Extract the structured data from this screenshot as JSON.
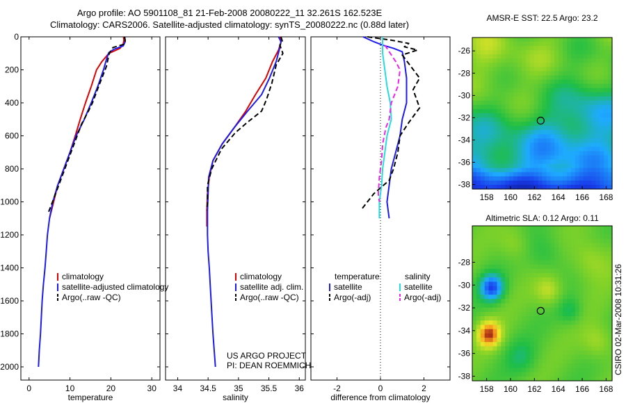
{
  "header": {
    "title_line1": "Argo profile: AO 5901108_81 21-Feb-2008 20080222_11 32.261S 162.523E",
    "title_line2": "Climatology: CARS2006. Satellite-adjusted climatology: synTS_20080222.nc (0.88d later)"
  },
  "stamp": "CSIRO 02-Mar-2008 10:31:26",
  "project_credit": {
    "line1": "US ARGO PROJECT",
    "line2": "PI: DEAN ROEMMICH"
  },
  "colors": {
    "red": "#dd0000",
    "blue": "#1a1aee",
    "black": "#000000",
    "cyan": "#22dddd",
    "magenta": "#ee22ee"
  },
  "chart_data": [
    {
      "id": "temperature",
      "type": "line",
      "xlabel": "temperature",
      "xlim": [
        -2,
        32
      ],
      "ylim": [
        2080,
        0
      ],
      "xticks": [
        0,
        10,
        20,
        30
      ],
      "yticks": [
        0,
        200,
        400,
        600,
        800,
        1000,
        1200,
        1400,
        1600,
        1800,
        2000
      ],
      "legend": [
        "climatology",
        "satellite-adjusted climatology",
        "Argo(..raw -QC)"
      ],
      "series": [
        {
          "name": "climatology",
          "color": "red",
          "style": "solid",
          "points": [
            [
              23.1,
              0
            ],
            [
              23.2,
              20
            ],
            [
              23.0,
              45
            ],
            [
              22.2,
              70
            ],
            [
              19.5,
              100
            ],
            [
              17.8,
              150
            ],
            [
              16.5,
              200
            ],
            [
              15.2,
              300
            ],
            [
              13.8,
              400
            ],
            [
              12.5,
              500
            ],
            [
              11.3,
              600
            ],
            [
              10.0,
              700
            ],
            [
              8.5,
              800
            ],
            [
              7.0,
              900
            ],
            [
              6.0,
              1000
            ],
            [
              5.0,
              1100
            ]
          ]
        },
        {
          "name": "satellite-adjusted climatology",
          "color": "blue",
          "style": "solid",
          "points": [
            [
              23.4,
              0
            ],
            [
              23.5,
              30
            ],
            [
              23.0,
              55
            ],
            [
              20.8,
              75
            ],
            [
              19.5,
              95
            ],
            [
              19.0,
              130
            ],
            [
              18.2,
              200
            ],
            [
              16.8,
              300
            ],
            [
              15.2,
              400
            ],
            [
              13.5,
              500
            ],
            [
              11.5,
              600
            ],
            [
              10.0,
              700
            ],
            [
              8.5,
              800
            ],
            [
              7.0,
              900
            ],
            [
              5.8,
              1000
            ],
            [
              5.0,
              1100
            ],
            [
              4.5,
              1200
            ],
            [
              4.2,
              1300
            ],
            [
              3.9,
              1400
            ],
            [
              3.5,
              1500
            ],
            [
              3.2,
              1600
            ],
            [
              3.0,
              1700
            ],
            [
              2.8,
              1800
            ],
            [
              2.5,
              1900
            ],
            [
              2.3,
              2000
            ]
          ]
        },
        {
          "name": "Argo(..raw -QC)",
          "color": "black",
          "style": "dashed",
          "points": [
            [
              23.3,
              0
            ],
            [
              23.5,
              20
            ],
            [
              23.2,
              45
            ],
            [
              20.5,
              65
            ],
            [
              19.6,
              100
            ],
            [
              18.9,
              180
            ],
            [
              17.0,
              300
            ],
            [
              15.5,
              400
            ],
            [
              14.5,
              450
            ],
            [
              12.8,
              530
            ],
            [
              11.0,
              650
            ],
            [
              9.5,
              750
            ],
            [
              8.0,
              850
            ],
            [
              6.5,
              950
            ],
            [
              4.8,
              1060
            ]
          ]
        }
      ]
    },
    {
      "id": "salinity",
      "type": "line",
      "xlabel": "salinity",
      "xlim": [
        33.8,
        36.1
      ],
      "ylim": [
        2080,
        0
      ],
      "xticks": [
        34,
        34.5,
        35,
        35.5,
        36
      ],
      "legend": [
        "climatology",
        "satellite adj. clim.",
        "Argo(..raw -QC)"
      ],
      "series": [
        {
          "name": "climatology",
          "color": "red",
          "style": "solid",
          "points": [
            [
              35.68,
              0
            ],
            [
              35.7,
              30
            ],
            [
              35.66,
              80
            ],
            [
              35.56,
              150
            ],
            [
              35.45,
              250
            ],
            [
              35.28,
              350
            ],
            [
              35.12,
              450
            ],
            [
              34.93,
              550
            ],
            [
              34.73,
              650
            ],
            [
              34.58,
              750
            ],
            [
              34.52,
              850
            ],
            [
              34.49,
              950
            ],
            [
              34.48,
              1050
            ],
            [
              34.48,
              1150
            ]
          ]
        },
        {
          "name": "satellite adj. clim.",
          "color": "blue",
          "style": "solid",
          "points": [
            [
              35.66,
              0
            ],
            [
              35.7,
              30
            ],
            [
              35.67,
              80
            ],
            [
              35.62,
              150
            ],
            [
              35.51,
              250
            ],
            [
              35.38,
              350
            ],
            [
              35.15,
              450
            ],
            [
              34.93,
              550
            ],
            [
              34.73,
              650
            ],
            [
              34.58,
              750
            ],
            [
              34.51,
              850
            ],
            [
              34.5,
              950
            ],
            [
              34.49,
              1050
            ],
            [
              34.49,
              1200
            ],
            [
              34.5,
              1300
            ],
            [
              34.52,
              1400
            ],
            [
              34.55,
              1600
            ],
            [
              34.58,
              1800
            ],
            [
              34.62,
              2000
            ]
          ]
        },
        {
          "name": "Argo(..raw -QC)",
          "color": "black",
          "style": "dashed",
          "points": [
            [
              35.7,
              0
            ],
            [
              35.72,
              25
            ],
            [
              35.68,
              50
            ],
            [
              35.73,
              100
            ],
            [
              35.62,
              170
            ],
            [
              35.55,
              280
            ],
            [
              35.46,
              380
            ],
            [
              35.38,
              450
            ],
            [
              35.14,
              520
            ],
            [
              34.95,
              580
            ],
            [
              34.72,
              680
            ],
            [
              34.56,
              800
            ],
            [
              34.49,
              900
            ],
            [
              34.49,
              1000
            ],
            [
              34.48,
              1050
            ]
          ]
        }
      ]
    },
    {
      "id": "difference",
      "type": "line",
      "xlabel": "difference from climatology",
      "xlim": [
        -3.2,
        3.2
      ],
      "ylim": [
        2080,
        0
      ],
      "xticks": [
        -2,
        0,
        2
      ],
      "legend_headers": [
        "temperature",
        "salinity"
      ],
      "legend": [
        "satellite",
        "Argo(-adj)",
        "satellite",
        "Argo(-adj)"
      ],
      "series": [
        {
          "name": "temperature satellite",
          "color": "blue",
          "style": "solid",
          "points": [
            [
              -0.8,
              0
            ],
            [
              -0.3,
              30
            ],
            [
              0.1,
              50
            ],
            [
              0.6,
              70
            ],
            [
              1.0,
              90
            ],
            [
              1.1,
              150
            ],
            [
              1.2,
              250
            ],
            [
              1.2,
              300
            ],
            [
              1.2,
              400
            ],
            [
              1.0,
              500
            ],
            [
              0.9,
              600
            ],
            [
              0.7,
              700
            ],
            [
              0.5,
              800
            ],
            [
              0.4,
              900
            ],
            [
              0.3,
              1000
            ],
            [
              0.4,
              1100
            ]
          ]
        },
        {
          "name": "temperature Argo(-adj)",
          "color": "black",
          "style": "dashed",
          "points": [
            [
              -0.6,
              0
            ],
            [
              0.5,
              20
            ],
            [
              1.3,
              40
            ],
            [
              1.1,
              60
            ],
            [
              1.7,
              80
            ],
            [
              1.0,
              110
            ],
            [
              1.8,
              250
            ],
            [
              1.5,
              320
            ],
            [
              1.8,
              430
            ],
            [
              1.3,
              520
            ],
            [
              0.9,
              600
            ],
            [
              0.8,
              700
            ],
            [
              0.6,
              800
            ],
            [
              0.4,
              870
            ],
            [
              -0.3,
              950
            ],
            [
              -0.9,
              1050
            ]
          ]
        },
        {
          "name": "salinity satellite",
          "color": "cyan",
          "style": "solid",
          "points": [
            [
              0.1,
              0
            ],
            [
              0.1,
              100
            ],
            [
              0.2,
              200
            ],
            [
              0.3,
              300
            ],
            [
              0.45,
              400
            ],
            [
              0.5,
              500
            ],
            [
              0.3,
              600
            ],
            [
              0.2,
              700
            ],
            [
              0.1,
              800
            ],
            [
              0.05,
              900
            ],
            [
              -0.05,
              1000
            ],
            [
              -0.05,
              1100
            ]
          ]
        },
        {
          "name": "salinity Argo(-adj)",
          "color": "magenta",
          "style": "dashed",
          "points": [
            [
              0.2,
              50
            ],
            [
              0.7,
              150
            ],
            [
              0.9,
              200
            ],
            [
              0.8,
              300
            ],
            [
              0.5,
              400
            ],
            [
              0.4,
              500
            ],
            [
              0.25,
              550
            ],
            [
              0.1,
              650
            ],
            [
              0.05,
              750
            ],
            [
              -0.05,
              850
            ],
            [
              -0.1,
              950
            ],
            [
              -0.05,
              1000
            ]
          ]
        }
      ]
    },
    {
      "id": "sst-map",
      "type": "heatmap",
      "title": "AMSR-E SST: 22.5 Argo: 23.2",
      "xlim": [
        156.8,
        168.5
      ],
      "ylim": [
        -38.4,
        -24.8
      ],
      "xticks": [
        158,
        160,
        162,
        164,
        166,
        168
      ],
      "yticks": [
        -26,
        -28,
        -30,
        -32,
        -34,
        -36,
        -38
      ],
      "marker": [
        162.523,
        -32.261
      ]
    },
    {
      "id": "sla-map",
      "type": "heatmap",
      "title": "Altimetric SLA: 0.12 Argo: 0.11",
      "xlim": [
        156.8,
        168.5
      ],
      "ylim": [
        -38.4,
        -24.8
      ],
      "xticks": [
        158,
        160,
        162,
        164,
        166,
        168
      ],
      "yticks": [
        -28,
        -30,
        -32,
        -34,
        -36,
        -38
      ],
      "marker": [
        162.523,
        -32.261
      ]
    }
  ]
}
